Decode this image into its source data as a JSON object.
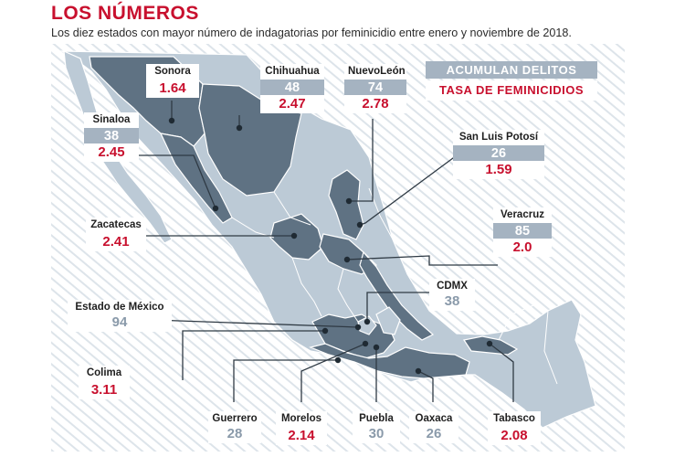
{
  "header": {
    "title": "LOS NÚMEROS",
    "subtitle": "Los diez estados con mayor número de indagatorias por feminicidio entre enero y noviembre de 2018."
  },
  "legend": {
    "count_label": "ACUMULAN DELITOS",
    "rate_label": "TASA DE FEMINICIDIOS"
  },
  "colors": {
    "highlighted_state": "#5f7283",
    "other_state": "#bccad6",
    "count_box": "#a5b3c1",
    "rate_text": "#c8102e",
    "ocean_hatch": "#dfe6ec"
  },
  "states": [
    {
      "name": "Sonora",
      "count": "",
      "rate": "1.64"
    },
    {
      "name": "Chihuahua",
      "count": "48",
      "rate": "2.47"
    },
    {
      "name": "NuevoLeón",
      "count": "74",
      "rate": "2.78"
    },
    {
      "name": "Sinaloa",
      "count": "38",
      "rate": "2.45"
    },
    {
      "name": "San Luis Potosí",
      "count": "26",
      "rate": "1.59"
    },
    {
      "name": "Zacatecas",
      "count": "",
      "rate": "2.41"
    },
    {
      "name": "Veracruz",
      "count": "85",
      "rate": "2.0"
    },
    {
      "name": "CDMX",
      "count": "38",
      "rate": ""
    },
    {
      "name": "Estado de México",
      "count": "94",
      "rate": ""
    },
    {
      "name": "Colima",
      "count": "",
      "rate": "3.11"
    },
    {
      "name": "Guerrero",
      "count": "28",
      "rate": ""
    },
    {
      "name": "Morelos",
      "count": "",
      "rate": "2.14"
    },
    {
      "name": "Puebla",
      "count": "30",
      "rate": ""
    },
    {
      "name": "Oaxaca",
      "count": "26",
      "rate": ""
    },
    {
      "name": "Tabasco",
      "count": "",
      "rate": "2.08"
    }
  ]
}
